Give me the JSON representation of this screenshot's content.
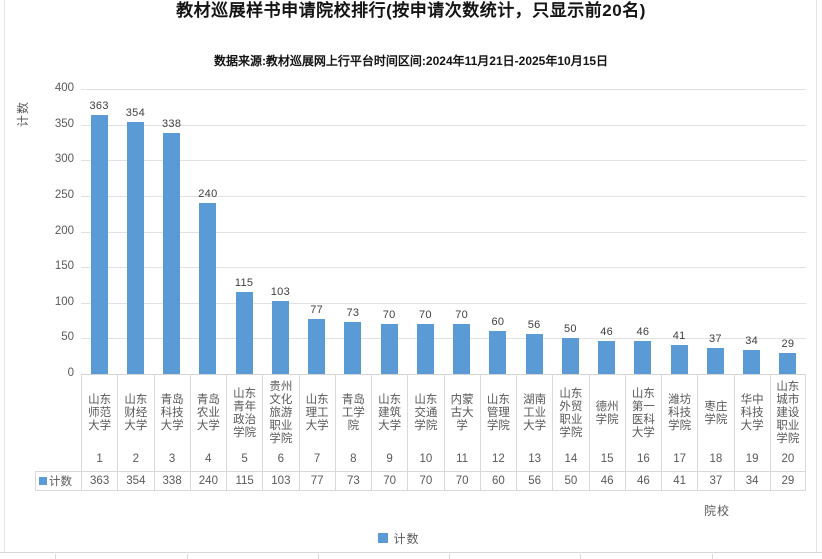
{
  "colors": {
    "bar": "#5b9bd5",
    "gridline": "#e2e2e2",
    "table_border": "#d9d9d9",
    "axis_text": "#595959",
    "value_label_text": "#404040",
    "title_text": "#141414"
  },
  "chart_data": {
    "type": "bar",
    "title": "教材巡展样书申请院校排行(按申请次数统计，只显示前20名)",
    "subtitle": "数据来源:教材巡展网上行平台时间区间:2024年11月21日-2025年10月15日",
    "xlabel": "院校",
    "ylabel": "计数",
    "ylim": [
      0,
      400
    ],
    "yticks": [
      0,
      50,
      100,
      150,
      200,
      250,
      300,
      350,
      400
    ],
    "grid": true,
    "legend_position": "bottom",
    "categories": [
      "山东师范大学",
      "山东财经大学",
      "青岛科技大学",
      "青岛农业大学",
      "山东青年政治学院",
      "贵州文化旅游职业学院",
      "山东理工大学",
      "青岛工学院",
      "山东建筑大学",
      "山东交通学院",
      "内蒙古大学",
      "山东管理学院",
      "湖南工业大学",
      "山东外贸职业学院",
      "德州学院",
      "山东第一医科大学",
      "潍坊科技学院",
      "枣庄学院",
      "华中科技大学",
      "山东城市建设职业学院"
    ],
    "ranks": [
      "1",
      "2",
      "3",
      "4",
      "5",
      "6",
      "7",
      "8",
      "9",
      "10",
      "11",
      "12",
      "13",
      "14",
      "15",
      "16",
      "17",
      "18",
      "19",
      "20"
    ],
    "series": [
      {
        "name": "计数",
        "color": "#5b9bd5",
        "values": [
          363,
          354,
          338,
          240,
          115,
          103,
          77,
          73,
          70,
          70,
          70,
          60,
          56,
          50,
          46,
          46,
          41,
          37,
          34,
          29
        ]
      }
    ]
  }
}
